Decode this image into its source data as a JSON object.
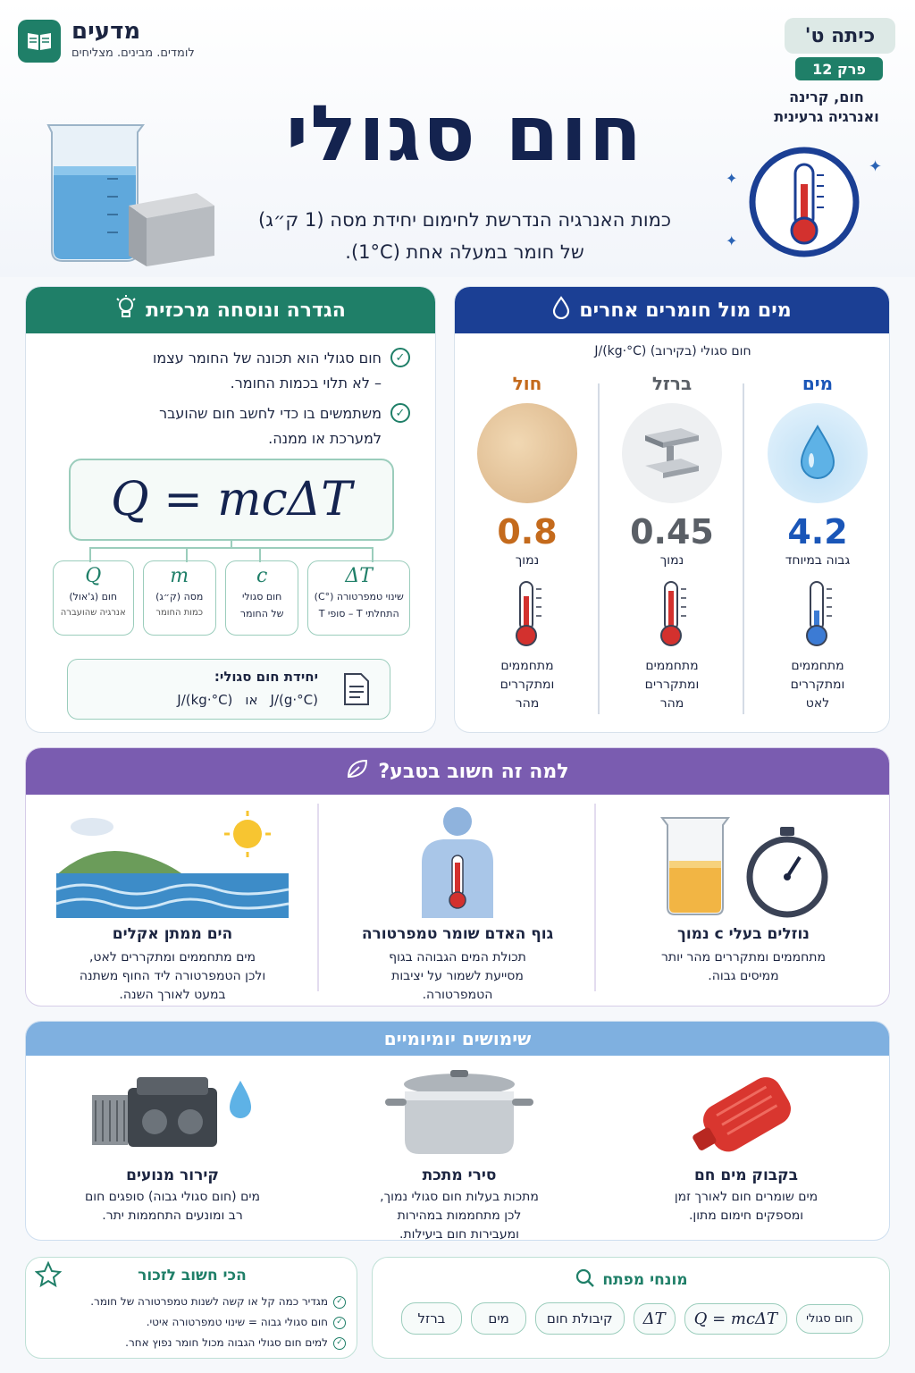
{
  "brand": {
    "name": "מדעים",
    "tagline": "לומדים. מבינים. מצליחים"
  },
  "grade": {
    "label": "כיתה ט'",
    "chapter": "פרק 12",
    "topic_line1": "חום, קרינה",
    "topic_line2": "ואנרגיה גרעינית"
  },
  "title": "חום סגולי",
  "subtitle_line1": "כמות האנרגיה הנדרשת לחימום יחידת מסה (1 ק״ג)",
  "subtitle_line2": "של חומר במעלה אחת (1°C).",
  "definition": {
    "header": "הגדרה ונוסחה מרכזית",
    "bullet1_line1": "חום סגולי הוא תכונה של החומר עצמו",
    "bullet1_line2": "– לא תלוי בכמות החומר.",
    "bullet2_line1": "משתמשים בו כדי לחשב חום שהועבר",
    "bullet2_line2": "למערכת או ממנה.",
    "formula": "Q = mcΔT",
    "vars": [
      {
        "sym": "ΔT",
        "l1": "שינוי טמפרטורה (°C)",
        "l2": "T סופי – T התחלתי"
      },
      {
        "sym": "c",
        "l1": "חום סגולי",
        "l2": "של החומר"
      },
      {
        "sym": "m",
        "l1": "מסה (ק״ג)",
        "l2": "כמות החומר"
      },
      {
        "sym": "Q",
        "l1": "חום (ג'אול)",
        "l2": "אנרגיה שהועברה"
      }
    ],
    "unit_title": "יחידת חום סגולי:",
    "unit_a": "J/(kg·°C)",
    "unit_or": "או",
    "unit_b": "J/(g·°C)"
  },
  "compare": {
    "header": "מים מול חומרים אחרים",
    "caption": "חום סגולי (בקירוב) J/(kg·°C)",
    "items": [
      {
        "name": "מים",
        "value": "4.2",
        "level": "גבוה במיוחד",
        "note1": "מתחממים",
        "note2": "ומתקררים",
        "note3": "לאט",
        "color": "#1a56b8"
      },
      {
        "name": "ברזל",
        "value": "0.45",
        "level": "נמוך",
        "note1": "מתחממים",
        "note2": "ומתקררים",
        "note3": "מהר",
        "color": "#5a5f66"
      },
      {
        "name": "חול",
        "value": "0.8",
        "level": "נמוך",
        "note1": "מתחממים",
        "note2": "ומתקררים",
        "note3": "מהר",
        "color": "#c46a1c"
      }
    ]
  },
  "nature": {
    "header": "למה זה חשוב בטבע?",
    "items": [
      {
        "title": "נוזלים בעלי c נמוך",
        "l1": "מתחממים ומתקררים מהר יותר",
        "l2": "ממיסים גבוה.",
        "l3": ""
      },
      {
        "title": "גוף האדם שומר טמפרטורה",
        "l1": "תכולת המים הגבוהה בגוף",
        "l2": "מסייעת לשמור על יציבות",
        "l3": "הטמפרטורה."
      },
      {
        "title": "הים ממתן אקלים",
        "l1": "מים מתחממים ומתקררים לאט,",
        "l2": "ולכן הטמפרטורה ליד החוף משתנה",
        "l3": "במעט לאורך השנה."
      }
    ]
  },
  "uses": {
    "header": "שימושים יומיומיים",
    "items": [
      {
        "title": "בקבוק מים חם",
        "l1": "מים שומרים חום לאורך זמן",
        "l2": "ומספקים חימום מתון.",
        "l3": ""
      },
      {
        "title": "סירי מתכת",
        "l1": "מתכות בעלות חום סגולי נמוך,",
        "l2": "לכן מתחממות במהירות",
        "l3": "ומעבירות חום ביעילות."
      },
      {
        "title": "קירור מנועים",
        "l1": "מים (חום סגולי גבוה) סופגים חום",
        "l2": "רב ומונעים התחממות יתר.",
        "l3": ""
      }
    ]
  },
  "terms": {
    "header": "מונחי מפתח",
    "chips": [
      "חום סגולי",
      "Q = mcΔT",
      "ΔT",
      "קיבולת חום",
      "מים",
      "ברזל"
    ]
  },
  "remember": {
    "header": "הכי חשוב לזכור",
    "items": [
      "מגדיר כמה קל או קשה לשנות טמפרטורה של חומר.",
      "חום סגולי גבוה = שינוי טמפרטורה איטי.",
      "למים חום סגולי הגבוה מכול חומר נפוץ אחר."
    ]
  },
  "colors": {
    "green": "#1f7f68",
    "navy": "#1b3f94",
    "purple": "#7a5cb0",
    "lightblue": "#7fb0e0",
    "title": "#14234f"
  }
}
